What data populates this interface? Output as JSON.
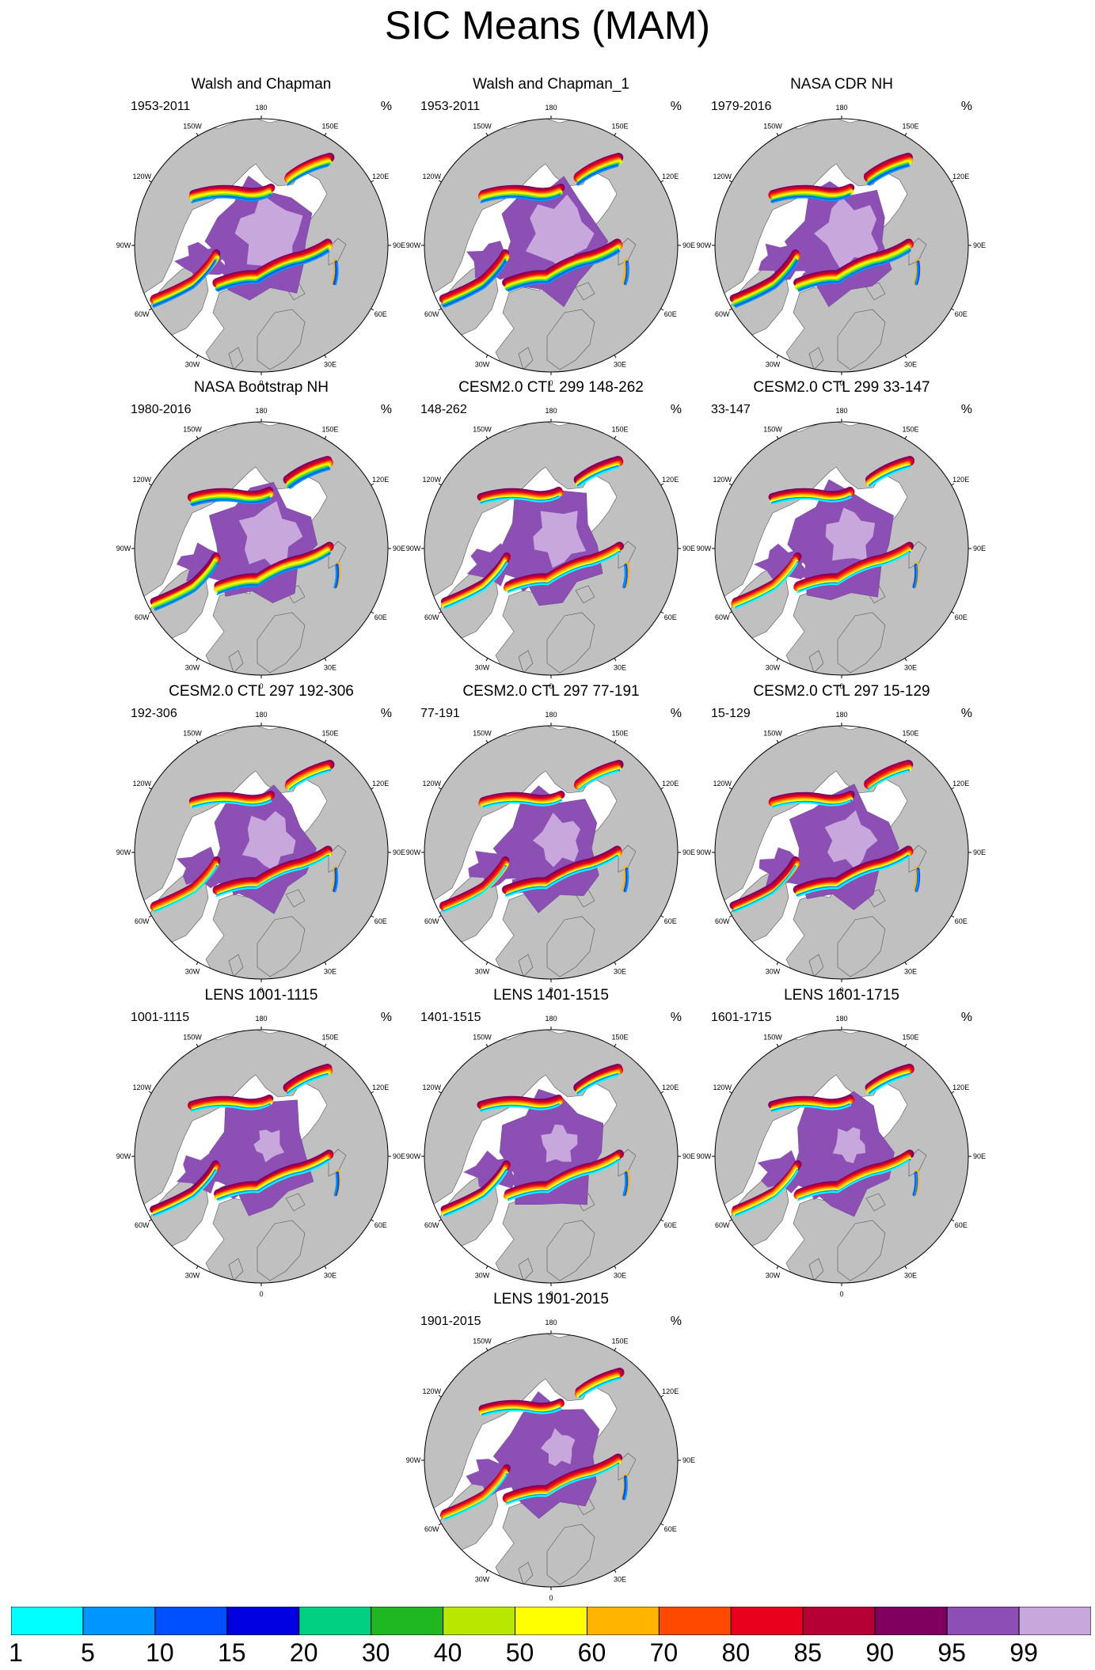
{
  "figure": {
    "title": "SIC Means (MAM)"
  },
  "panels": [
    {
      "title": "Walsh and Chapman",
      "period": "1953-2011",
      "units": "%"
    },
    {
      "title": "Walsh and Chapman_1",
      "period": "1953-2011",
      "units": "%"
    },
    {
      "title": "NASA CDR NH",
      "period": "1979-2016",
      "units": "%"
    },
    {
      "title": "NASA Bootstrap NH",
      "period": "1980-2016",
      "units": "%"
    },
    {
      "title": "CESM2.0 CTL 299 148-262",
      "period": "148-262",
      "units": "%"
    },
    {
      "title": "CESM2.0 CTL 299 33-147",
      "period": "33-147",
      "units": "%"
    },
    {
      "title": "CESM2.0 CTL 297 192-306",
      "period": "192-306",
      "units": "%"
    },
    {
      "title": "CESM2.0 CTL 297 77-191",
      "period": "77-191",
      "units": "%"
    },
    {
      "title": "CESM2.0 CTL 297 15-129",
      "period": "15-129",
      "units": "%"
    },
    {
      "title": "LENS 1001-1115",
      "period": "1001-1115",
      "units": "%"
    },
    {
      "title": "LENS 1401-1515",
      "period": "1401-1515",
      "units": "%"
    },
    {
      "title": "LENS 1601-1715",
      "period": "1601-1715",
      "units": "%"
    },
    {
      "title": "LENS 1901-2015",
      "period": "1901-2015",
      "units": "%"
    }
  ],
  "longitude_labels": [
    "180",
    "150E",
    "120E",
    "90E",
    "60E",
    "30E",
    "0",
    "30W",
    "60W",
    "90W",
    "120W",
    "150W"
  ],
  "colorbar": {
    "labels": [
      "1",
      "5",
      "10",
      "15",
      "20",
      "30",
      "40",
      "50",
      "60",
      "70",
      "80",
      "85",
      "90",
      "95",
      "99"
    ],
    "colors": [
      "#00ffff",
      "#0095ff",
      "#0050ff",
      "#0000e0",
      "#00d080",
      "#20b820",
      "#b8e800",
      "#ffff00",
      "#ffb400",
      "#ff4800",
      "#e8001c",
      "#b40032",
      "#800060",
      "#8c50b4",
      "#c8a8dc"
    ]
  },
  "colors": {
    "land": "#c0c0c0",
    "ocean": "#ffffff"
  }
}
